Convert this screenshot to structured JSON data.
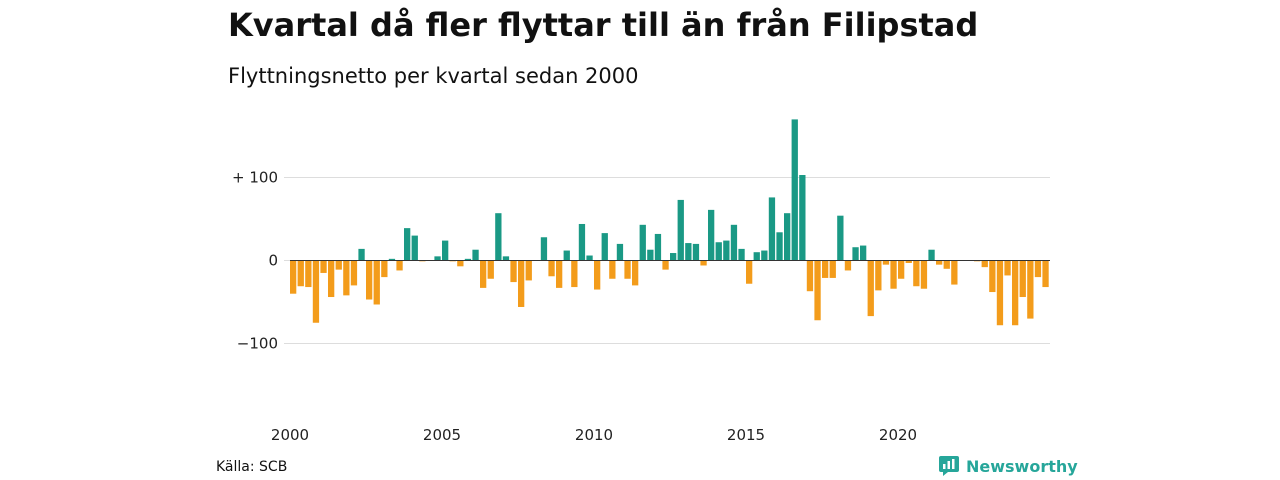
{
  "header": {
    "title": "Kvartal då fler flyttar till än från Filipstad",
    "subtitle": "Flyttningsnetto per kvartal sedan 2000"
  },
  "footer": {
    "source": "Källa: SCB",
    "brand": "Newsworthy",
    "brand_icon": "newsworthy-logo-icon"
  },
  "colors": {
    "positive": "#1a9985",
    "negative": "#f39c1b",
    "brand": "#26a69a",
    "grid": "#dddddd"
  },
  "chart_data": {
    "type": "bar",
    "start_year": 2000,
    "periods_per_year": 4,
    "values": [
      -40,
      -31,
      -32,
      -75,
      -15,
      -44,
      -11,
      -42,
      -30,
      14,
      -47,
      -53,
      -20,
      2,
      -12,
      39,
      30,
      -1,
      0,
      5,
      24,
      -1,
      -7,
      2,
      13,
      -33,
      -22,
      57,
      5,
      -26,
      -56,
      -24,
      0,
      28,
      -19,
      -33,
      12,
      -32,
      44,
      6,
      -35,
      33,
      -22,
      20,
      -22,
      -30,
      43,
      13,
      32,
      -11,
      9,
      73,
      21,
      20,
      -6,
      61,
      22,
      24,
      43,
      14,
      -28,
      10,
      12,
      76,
      34,
      57,
      170,
      103,
      -37,
      -72,
      -21,
      -21,
      54,
      -12,
      16,
      18,
      -67,
      -36,
      -5,
      -34,
      -22,
      -3,
      -31,
      -34,
      13,
      -5,
      -10,
      -29,
      0,
      0,
      -1,
      -8,
      -38,
      -78,
      -18,
      -78,
      -44,
      -70,
      -20,
      -32
    ],
    "yticks": [
      {
        "value": 100,
        "label": "+ 100"
      },
      {
        "value": 0,
        "label": "0"
      },
      {
        "value": -100,
        "label": "−100"
      }
    ],
    "xticks": [
      "2000",
      "2005",
      "2010",
      "2015",
      "2020"
    ],
    "ylim": [
      -150,
      180
    ],
    "grid": true,
    "legend": "none"
  }
}
